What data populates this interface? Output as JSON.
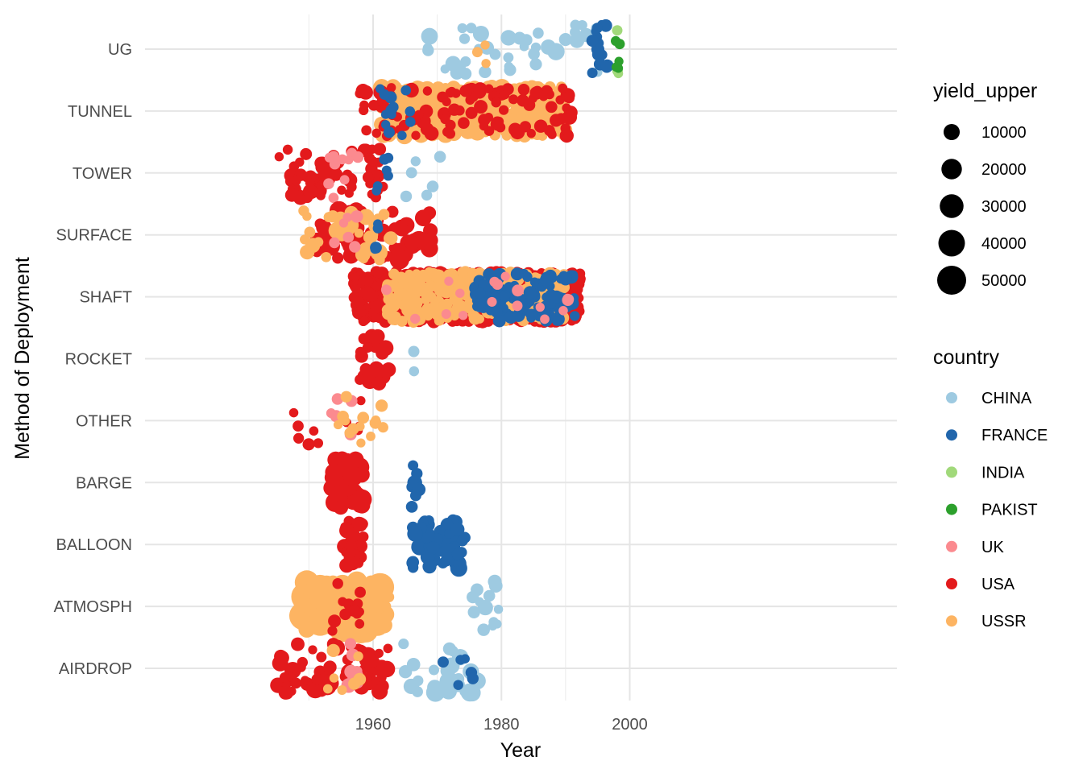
{
  "chart_data": {
    "type": "scatter",
    "title": "",
    "xlabel": "Year",
    "ylabel": "Method of Deployment",
    "xlim": [
      1943,
      2002
    ],
    "x_ticks": [
      "1960",
      "1980",
      "2000"
    ],
    "categories": [
      "UG",
      "TUNNEL",
      "TOWER",
      "SURFACE",
      "SHAFT",
      "ROCKET",
      "OTHER",
      "BARGE",
      "BALLOON",
      "ATMOSPH",
      "AIRDROP"
    ],
    "grid": true,
    "legend_position": "right",
    "size_legend": {
      "title": "yield_upper",
      "labels": [
        "10000",
        "20000",
        "30000",
        "40000",
        "50000"
      ],
      "values": [
        10000,
        20000,
        30000,
        40000,
        50000
      ]
    },
    "color_legend": {
      "title": "country",
      "labels": [
        "CHINA",
        "FRANCE",
        "INDIA",
        "PAKIST",
        "UK",
        "USA",
        "USSR"
      ],
      "colors": [
        "#9ecae1",
        "#2166ac",
        "#a1d97a",
        "#2ca02c",
        "#fb8a8f",
        "#e31a1c",
        "#fdb462"
      ]
    },
    "clusters": [
      {
        "cat": "UG",
        "country": "CHINA",
        "x0": 1968.5,
        "x1": 1996,
        "n": 38,
        "ymin": 1000,
        "ymax": 15000
      },
      {
        "cat": "UG",
        "country": "FRANCE",
        "x0": 1994,
        "x1": 1996.5,
        "n": 14,
        "ymin": 1000,
        "ymax": 5000
      },
      {
        "cat": "UG",
        "country": "INDIA",
        "x0": 1997.8,
        "x1": 1998.4,
        "n": 3,
        "ymin": 1000,
        "ymax": 3000
      },
      {
        "cat": "UG",
        "country": "PAKIST",
        "x0": 1997.8,
        "x1": 1998.6,
        "n": 5,
        "ymin": 1000,
        "ymax": 4000
      },
      {
        "cat": "UG",
        "country": "USSR",
        "x0": 1975,
        "x1": 1979,
        "n": 3,
        "ymin": 1000,
        "ymax": 3000
      },
      {
        "cat": "TUNNEL",
        "country": "USSR",
        "x0": 1961,
        "x1": 1990,
        "n": 460,
        "ymin": 1000,
        "ymax": 12000
      },
      {
        "cat": "TUNNEL",
        "country": "USA",
        "x0": 1957,
        "x1": 1992,
        "n": 110,
        "ymin": 1000,
        "ymax": 8000
      },
      {
        "cat": "TUNNEL",
        "country": "FRANCE",
        "x0": 1961,
        "x1": 1966,
        "n": 13,
        "ymin": 1000,
        "ymax": 4000
      },
      {
        "cat": "TOWER",
        "country": "USA",
        "x0": 1945,
        "x1": 1962,
        "n": 70,
        "ymin": 1000,
        "ymax": 8000
      },
      {
        "cat": "TOWER",
        "country": "UK",
        "x0": 1953,
        "x1": 1958,
        "n": 10,
        "ymin": 1000,
        "ymax": 4000
      },
      {
        "cat": "TOWER",
        "country": "FRANCE",
        "x0": 1960,
        "x1": 1962.5,
        "n": 6,
        "ymin": 1000,
        "ymax": 4000
      },
      {
        "cat": "TOWER",
        "country": "CHINA",
        "x0": 1964.5,
        "x1": 1971,
        "n": 6,
        "ymin": 1000,
        "ymax": 4000
      },
      {
        "cat": "SURFACE",
        "country": "USA",
        "x0": 1951,
        "x1": 1969,
        "n": 55,
        "ymin": 1000,
        "ymax": 20000
      },
      {
        "cat": "SURFACE",
        "country": "USSR",
        "x0": 1949,
        "x1": 1963,
        "n": 35,
        "ymin": 1000,
        "ymax": 12000
      },
      {
        "cat": "SURFACE",
        "country": "UK",
        "x0": 1953,
        "x1": 1958,
        "n": 6,
        "ymin": 1000,
        "ymax": 5000
      },
      {
        "cat": "SURFACE",
        "country": "FRANCE",
        "x0": 1960,
        "x1": 1961,
        "n": 4,
        "ymin": 1000,
        "ymax": 4000
      },
      {
        "cat": "SHAFT",
        "country": "USA",
        "x0": 1957,
        "x1": 1992.5,
        "n": 820,
        "ymin": 1000,
        "ymax": 6000
      },
      {
        "cat": "SHAFT",
        "country": "USSR",
        "x0": 1962,
        "x1": 1990,
        "n": 300,
        "ymin": 1000,
        "ymax": 6000
      },
      {
        "cat": "SHAFT",
        "country": "FRANCE",
        "x0": 1976,
        "x1": 1991.5,
        "n": 120,
        "ymin": 1000,
        "ymax": 6000
      },
      {
        "cat": "SHAFT",
        "country": "UK",
        "x0": 1962,
        "x1": 1991,
        "n": 18,
        "ymin": 1000,
        "ymax": 4000
      },
      {
        "cat": "ROCKET",
        "country": "USA",
        "x0": 1957.5,
        "x1": 1962.5,
        "n": 22,
        "ymin": 2000,
        "ymax": 12000
      },
      {
        "cat": "ROCKET",
        "country": "CHINA",
        "x0": 1966,
        "x1": 1966.5,
        "n": 2,
        "ymin": 1000,
        "ymax": 3000
      },
      {
        "cat": "OTHER",
        "country": "USA",
        "x0": 1945.5,
        "x1": 1958.5,
        "n": 10,
        "ymin": 1000,
        "ymax": 4000
      },
      {
        "cat": "OTHER",
        "country": "UK",
        "x0": 1952,
        "x1": 1957.5,
        "n": 5,
        "ymin": 1000,
        "ymax": 4000
      },
      {
        "cat": "OTHER",
        "country": "USSR",
        "x0": 1954,
        "x1": 1962.5,
        "n": 14,
        "ymin": 1000,
        "ymax": 5000
      },
      {
        "cat": "BARGE",
        "country": "USA",
        "x0": 1953.5,
        "x1": 1958.5,
        "n": 32,
        "ymin": 8000,
        "ymax": 25000
      },
      {
        "cat": "BARGE",
        "country": "FRANCE",
        "x0": 1966,
        "x1": 1967.5,
        "n": 7,
        "ymin": 2000,
        "ymax": 8000
      },
      {
        "cat": "BALLOON",
        "country": "USA",
        "x0": 1955.5,
        "x1": 1958.5,
        "n": 30,
        "ymin": 2000,
        "ymax": 10000
      },
      {
        "cat": "BALLOON",
        "country": "FRANCE",
        "x0": 1966,
        "x1": 1974.5,
        "n": 50,
        "ymin": 2000,
        "ymax": 12000
      },
      {
        "cat": "ATMOSPH",
        "country": "USSR",
        "x0": 1949,
        "x1": 1962.5,
        "n": 90,
        "ymin": 2000,
        "ymax": 50000
      },
      {
        "cat": "ATMOSPH",
        "country": "USA",
        "x0": 1952,
        "x1": 1958,
        "n": 12,
        "ymin": 1000,
        "ymax": 5000
      },
      {
        "cat": "ATMOSPH",
        "country": "CHINA",
        "x0": 1975,
        "x1": 1980.5,
        "n": 14,
        "ymin": 1000,
        "ymax": 10000
      },
      {
        "cat": "AIRDROP",
        "country": "USA",
        "x0": 1945,
        "x1": 1962.5,
        "n": 70,
        "ymin": 1000,
        "ymax": 15000
      },
      {
        "cat": "AIRDROP",
        "country": "UK",
        "x0": 1956,
        "x1": 1958,
        "n": 10,
        "ymin": 2000,
        "ymax": 12000
      },
      {
        "cat": "AIRDROP",
        "country": "USSR",
        "x0": 1951,
        "x1": 1958,
        "n": 8,
        "ymin": 1000,
        "ymax": 6000
      },
      {
        "cat": "AIRDROP",
        "country": "CHINA",
        "x0": 1964.5,
        "x1": 1976.5,
        "n": 26,
        "ymin": 2000,
        "ymax": 20000
      },
      {
        "cat": "AIRDROP",
        "country": "FRANCE",
        "x0": 1966,
        "x1": 1976,
        "n": 6,
        "ymin": 1000,
        "ymax": 4000
      }
    ]
  }
}
